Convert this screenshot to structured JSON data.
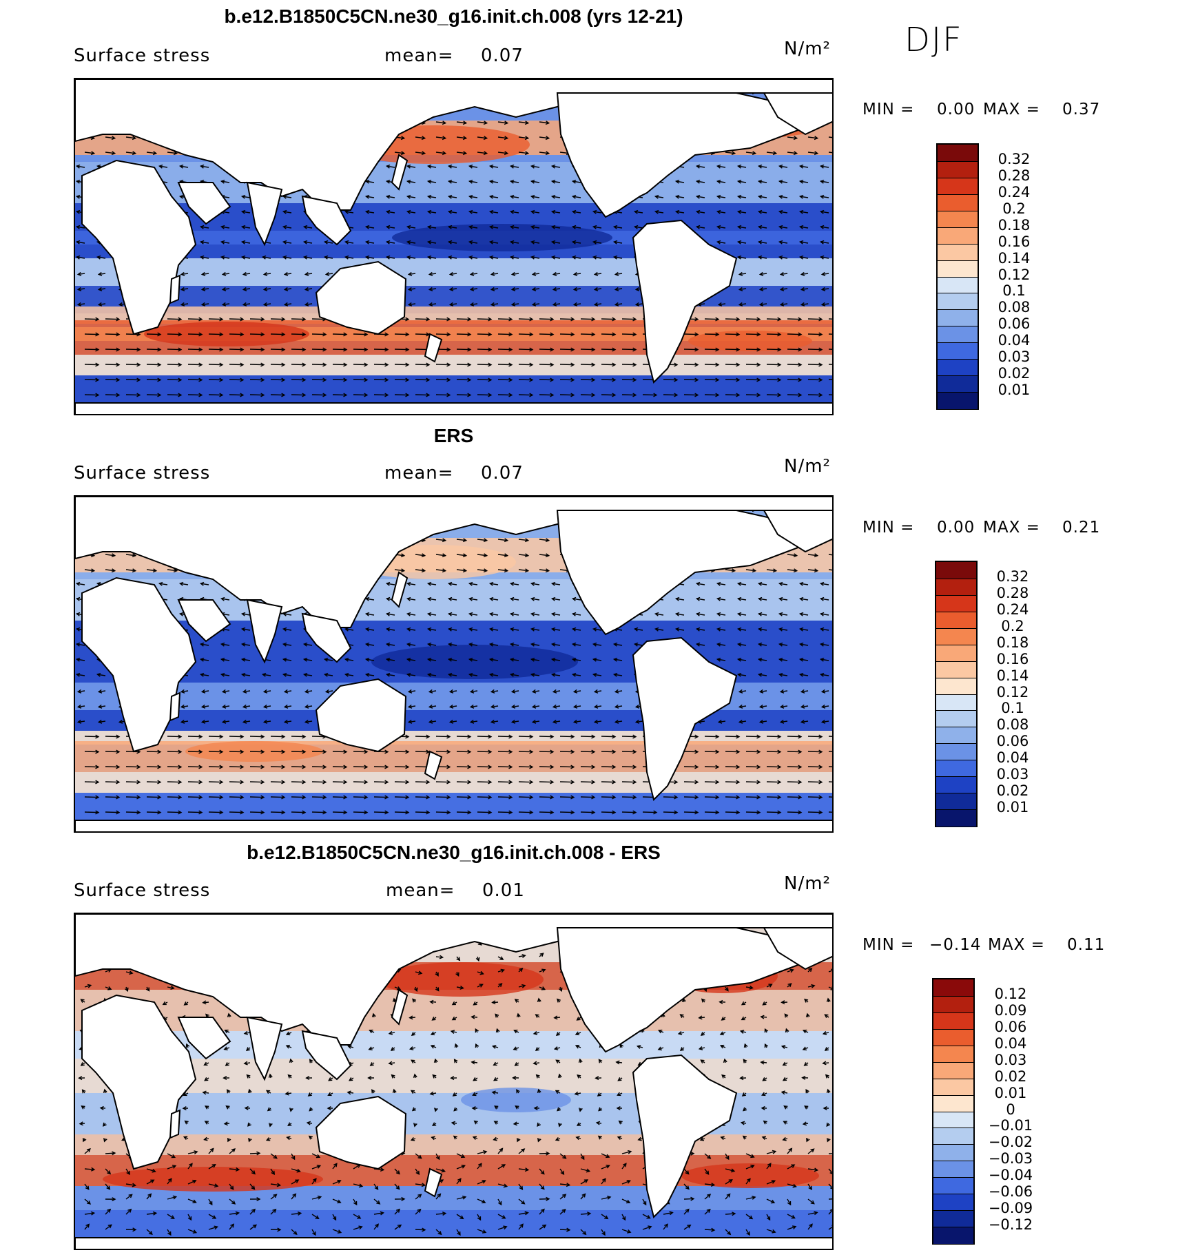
{
  "season": "DJF",
  "panels": [
    {
      "title": "b.e12.B1850C5CN.ne30_g16.init.ch.008 (yrs 12-21)",
      "variable": "Surface stress",
      "mean_label": "mean=",
      "mean_value": "0.07",
      "units": "N/m²",
      "min_label": "MIN =",
      "min_value": "0.00",
      "max_label": "MAX =",
      "max_value": "0.37",
      "colorbar": [
        "0.32",
        "0.28",
        "0.24",
        "0.2",
        "0.18",
        "0.16",
        "0.14",
        "0.12",
        "0.1",
        "0.08",
        "0.06",
        "0.04",
        "0.03",
        "0.02",
        "0.01"
      ],
      "colors": [
        "#7a0a0a",
        "#b3200f",
        "#d6361a",
        "#ea5d2e",
        "#f4864f",
        "#f9a878",
        "#fbc8a3",
        "#fde6cf",
        "#d8e6f6",
        "#b4cdef",
        "#8fb1ea",
        "#6b92e6",
        "#3f69e0",
        "#1e42c4",
        "#102b99",
        "#08156c"
      ]
    },
    {
      "title": "ERS",
      "variable": "Surface stress",
      "mean_label": "mean=",
      "mean_value": "0.07",
      "units": "N/m²",
      "min_label": "MIN =",
      "min_value": "0.00",
      "max_label": "MAX =",
      "max_value": "0.21",
      "colorbar": [
        "0.32",
        "0.28",
        "0.24",
        "0.2",
        "0.18",
        "0.16",
        "0.14",
        "0.12",
        "0.1",
        "0.08",
        "0.06",
        "0.04",
        "0.03",
        "0.02",
        "0.01"
      ],
      "colors": [
        "#7a0a0a",
        "#b3200f",
        "#d6361a",
        "#ea5d2e",
        "#f4864f",
        "#f9a878",
        "#fbc8a3",
        "#fde6cf",
        "#d8e6f6",
        "#b4cdef",
        "#8fb1ea",
        "#6b92e6",
        "#3f69e0",
        "#1e42c4",
        "#102b99",
        "#08156c"
      ]
    },
    {
      "title": "b.e12.B1850C5CN.ne30_g16.init.ch.008 - ERS",
      "variable": "Surface stress",
      "mean_label": "mean=",
      "mean_value": "0.01",
      "units": "N/m²",
      "min_label": "MIN =",
      "min_value": "−0.14",
      "max_label": "MAX =",
      "max_value": "0.11",
      "colorbar": [
        "0.12",
        "0.09",
        "0.06",
        "0.04",
        "0.03",
        "0.02",
        "0.01",
        "0",
        "−0.01",
        "−0.02",
        "−0.03",
        "−0.04",
        "−0.06",
        "−0.09",
        "−0.12"
      ],
      "colors": [
        "#8a0a0a",
        "#b3200f",
        "#d6361a",
        "#ea5d2e",
        "#f4864f",
        "#f9a878",
        "#fbc8a3",
        "#fde6cf",
        "#d8e6f6",
        "#b4cdef",
        "#8fb1ea",
        "#6b92e6",
        "#3f69e0",
        "#1e42c4",
        "#102b99",
        "#08156c"
      ]
    }
  ],
  "land_color": "#ffffff",
  "ocean_colors": {
    "panel1": [
      "#6b92e6",
      "#1e42c4",
      "#b4cdef",
      "#fbc8a3",
      "#ea5d2e"
    ],
    "panel2": [
      "#8fb1ea",
      "#1e42c4",
      "#b4cdef",
      "#fbc8a3",
      "#f4864f"
    ],
    "panel3": [
      "#fde6cf",
      "#d8e6f6",
      "#fbc8a3",
      "#ea5d2e",
      "#6b92e6"
    ]
  }
}
